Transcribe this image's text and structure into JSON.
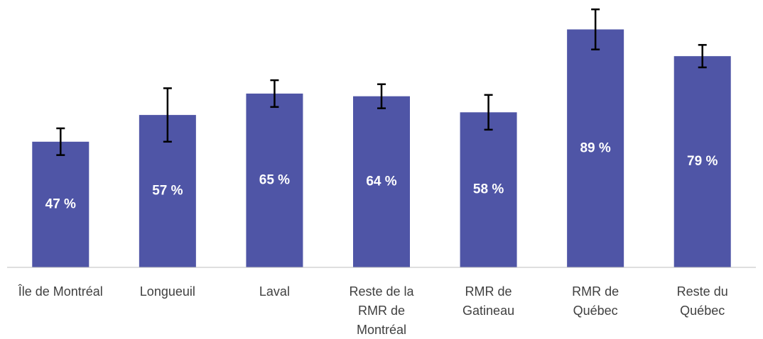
{
  "chart_data": {
    "type": "bar",
    "categories": [
      "Île de Montréal",
      "Longueuil",
      "Laval",
      "Reste de la\nRMR de\nMontréal",
      "RMR de\nGatineau",
      "RMR de\nQuébec",
      "Reste du\nQuébec"
    ],
    "values": [
      47,
      57,
      65,
      64,
      58,
      89,
      79
    ],
    "value_labels": [
      "47 %",
      "57 %",
      "65 %",
      "64 %",
      "58 %",
      "89 %",
      "79 %"
    ],
    "errors": [
      5,
      10,
      5,
      4.5,
      6.5,
      7.5,
      4.2
    ],
    "color": "#4f55a6",
    "ylim": [
      0,
      100
    ],
    "grid": false
  }
}
